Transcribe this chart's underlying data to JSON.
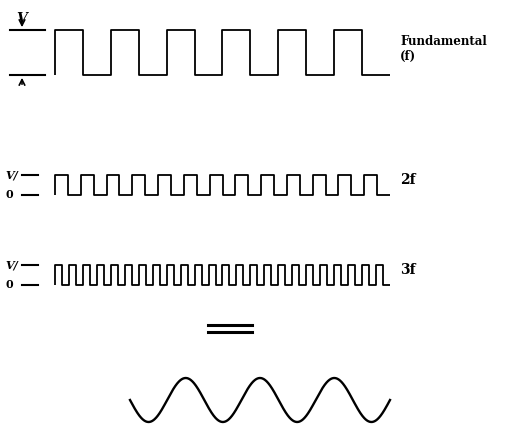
{
  "bg_color": "#ffffff",
  "line_color": "#000000",
  "fig_width": 5.2,
  "fig_height": 4.33,
  "dpi": 100,
  "fundamental_cycles": 6,
  "cycles_2f": 13,
  "cycles_3f": 24,
  "sine_cycles": 3.5,
  "label_fundamental_line1": "Fundamental",
  "label_fundamental_line2": "(f)",
  "label_2f": "2f",
  "label_3f": "3f"
}
